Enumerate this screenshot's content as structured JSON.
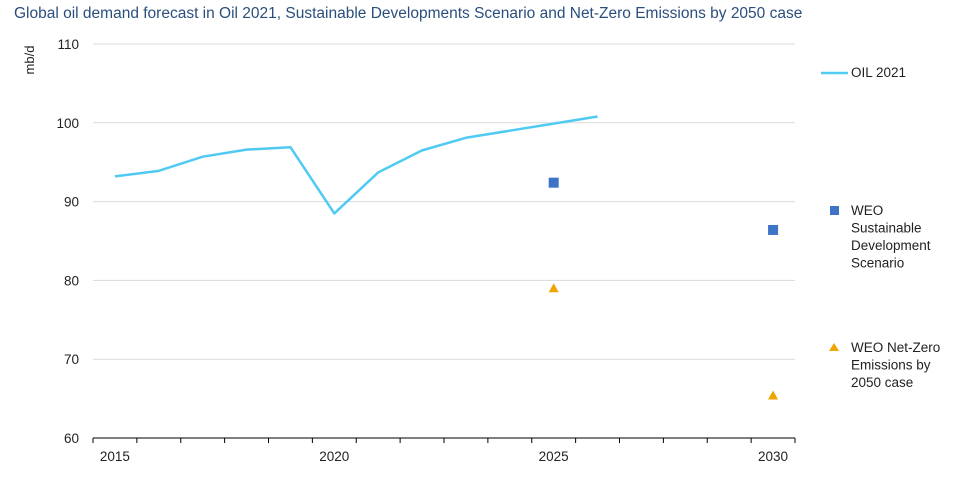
{
  "chart_data": {
    "type": "line",
    "title": "Global oil demand forecast in Oil 2021, Sustainable Developments Scenario and Net-Zero Emissions by 2050 case",
    "xlabel": "",
    "ylabel": "mb/d",
    "xlim": [
      2014.5,
      2030.5
    ],
    "ylim": [
      60,
      110
    ],
    "y_ticks": [
      60,
      70,
      80,
      90,
      100,
      110
    ],
    "x_tick_labels": [
      2015,
      2020,
      2025,
      2030
    ],
    "x_minor_ticks": [
      2015,
      2016,
      2017,
      2018,
      2019,
      2020,
      2021,
      2022,
      2023,
      2024,
      2025,
      2026,
      2027,
      2028,
      2029,
      2030
    ],
    "grid": "horizontal",
    "legend_position": "right",
    "series": [
      {
        "name": "OIL 2021",
        "kind": "line",
        "color": "#4fcaf3",
        "x": [
          2015,
          2016,
          2017,
          2018,
          2019,
          2020,
          2021,
          2022,
          2023,
          2024,
          2025,
          2026
        ],
        "y": [
          93.2,
          93.9,
          95.7,
          96.6,
          96.9,
          88.5,
          93.7,
          96.5,
          98.1,
          99.0,
          99.9,
          100.8
        ],
        "legend_lines": [
          "OIL 2021"
        ]
      },
      {
        "name": "WEO Sustainable Development Scenario",
        "kind": "square",
        "color": "#3d74c7",
        "x": [
          2025,
          2030
        ],
        "y": [
          92.4,
          86.4
        ],
        "legend_lines": [
          "WEO",
          "Sustainable",
          "Development",
          "Scenario"
        ]
      },
      {
        "name": "WEO Net-Zero Emissions by 2050 case",
        "kind": "triangle",
        "color": "#f0a400",
        "x": [
          2025,
          2030
        ],
        "y": [
          79.0,
          65.4
        ],
        "legend_lines": [
          "WEO Net-Zero",
          "Emissions by",
          "2050 case"
        ]
      }
    ]
  }
}
